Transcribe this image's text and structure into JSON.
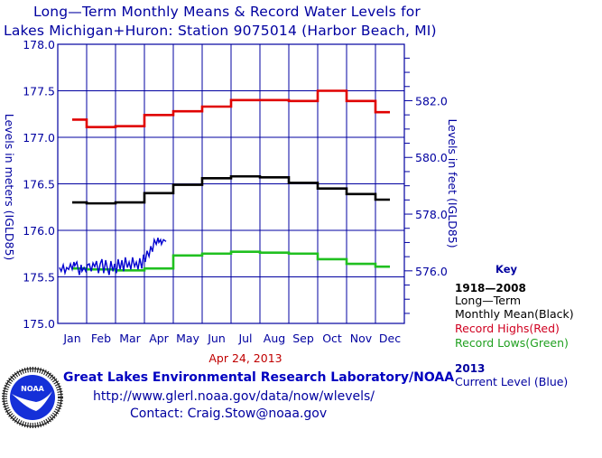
{
  "title_line1": "Long—Term Monthly Means & Record Water Levels for",
  "title_line2": "Lakes Michigan+Huron: Station 9075014 (Harbor Beach, MI)",
  "date_label": "Apr 24, 2013",
  "footer": {
    "lab": "Great Lakes Environmental Research Laboratory/NOAA",
    "url": "http://www.glerl.noaa.gov/data/now/wlevels/",
    "contact": "Contact: Craig.Stow@noaa.gov",
    "logo_text": "NOAA",
    "logo_ring_text": "NATIONAL OCEANIC AND ATMOSPHERIC ADMINISTRATION · U.S. DEPARTMENT OF COMMERCE"
  },
  "key": {
    "heading": "Key",
    "period": "1918—2008",
    "mean_line1": "Long—Term",
    "mean_line2": "Monthly Mean(Black)",
    "highs": "Record Highs(Red)",
    "lows": "Record Lows(Green)",
    "current_year": "2013",
    "current": "Current Level (Blue)"
  },
  "colors": {
    "axis": "#0000a0",
    "mean": "#000000",
    "highs": "#e00000",
    "lows": "#20c020",
    "current": "#0000d0",
    "date": "#c00000",
    "highs_text": "#d00020",
    "lows_text": "#20a020"
  },
  "chart_data": {
    "type": "line",
    "title": "Long—Term Monthly Means & Record Water Levels for Lakes Michigan+Huron: Station 9075014 (Harbor Beach, MI)",
    "xlabel": "",
    "ylabel": "Levels in meters (IGLD85)",
    "ylabel_right": "Levels in feet (IGLD85)",
    "categories": [
      "Jan",
      "Feb",
      "Mar",
      "Apr",
      "May",
      "Jun",
      "Jul",
      "Aug",
      "Sep",
      "Oct",
      "Nov",
      "Dec"
    ],
    "ylim": [
      175.0,
      178.0
    ],
    "yticks": [
      "178.0",
      "177.5",
      "177.0",
      "176.5",
      "176.0",
      "175.5",
      "175.0"
    ],
    "yticks_right": [
      "582.0",
      "580.0",
      "578.0",
      "576.0"
    ],
    "ylim_right_ft": [
      574.15,
      583.99
    ],
    "grid": true,
    "series": [
      {
        "name": "Record Highs(Red)",
        "key": "highs",
        "values": [
          177.19,
          177.11,
          177.12,
          177.24,
          177.28,
          177.33,
          177.4,
          177.4,
          177.39,
          177.5,
          177.39,
          177.27
        ]
      },
      {
        "name": "Monthly Mean(Black)",
        "key": "mean",
        "values": [
          176.3,
          176.29,
          176.3,
          176.4,
          176.49,
          176.56,
          176.58,
          176.57,
          176.51,
          176.45,
          176.39,
          176.33
        ]
      },
      {
        "name": "Record Lows(Green)",
        "key": "lows",
        "values": [
          175.59,
          175.58,
          175.57,
          175.59,
          175.73,
          175.75,
          175.77,
          175.76,
          175.75,
          175.69,
          175.64,
          175.61
        ]
      }
    ],
    "current_level": {
      "name": "Current Level (Blue)",
      "year": "2013",
      "x_months": [
        0.06,
        0.12,
        0.19,
        0.25,
        0.31,
        0.38,
        0.44,
        0.5,
        0.56,
        0.59,
        0.66,
        0.72,
        0.75,
        0.81,
        0.84,
        0.91,
        0.97,
        1.03,
        1.09,
        1.16,
        1.22,
        1.28,
        1.34,
        1.41,
        1.47,
        1.53,
        1.59,
        1.66,
        1.72,
        1.78,
        1.84,
        1.91,
        1.97,
        2.03,
        2.09,
        2.16,
        2.22,
        2.28,
        2.34,
        2.41,
        2.47,
        2.53,
        2.59,
        2.66,
        2.72,
        2.78,
        2.84,
        2.91,
        2.97,
        3.03,
        3.09,
        3.16,
        3.22,
        3.28,
        3.34,
        3.41,
        3.47,
        3.5,
        3.56,
        3.59,
        3.66,
        3.75
      ],
      "values": [
        175.6,
        175.56,
        175.63,
        175.54,
        175.6,
        175.58,
        175.64,
        175.58,
        175.66,
        175.62,
        175.66,
        175.56,
        175.52,
        175.63,
        175.56,
        175.6,
        175.56,
        175.63,
        175.64,
        175.56,
        175.65,
        175.61,
        175.67,
        175.54,
        175.64,
        175.69,
        175.54,
        175.68,
        175.59,
        175.52,
        175.67,
        175.56,
        175.64,
        175.54,
        175.69,
        175.58,
        175.68,
        175.56,
        175.71,
        175.6,
        175.66,
        175.58,
        175.71,
        175.61,
        175.66,
        175.58,
        175.7,
        175.59,
        175.74,
        175.66,
        175.78,
        175.72,
        175.83,
        175.77,
        175.9,
        175.85,
        175.92,
        175.87,
        175.9,
        175.85,
        175.9,
        175.88
      ]
    }
  }
}
